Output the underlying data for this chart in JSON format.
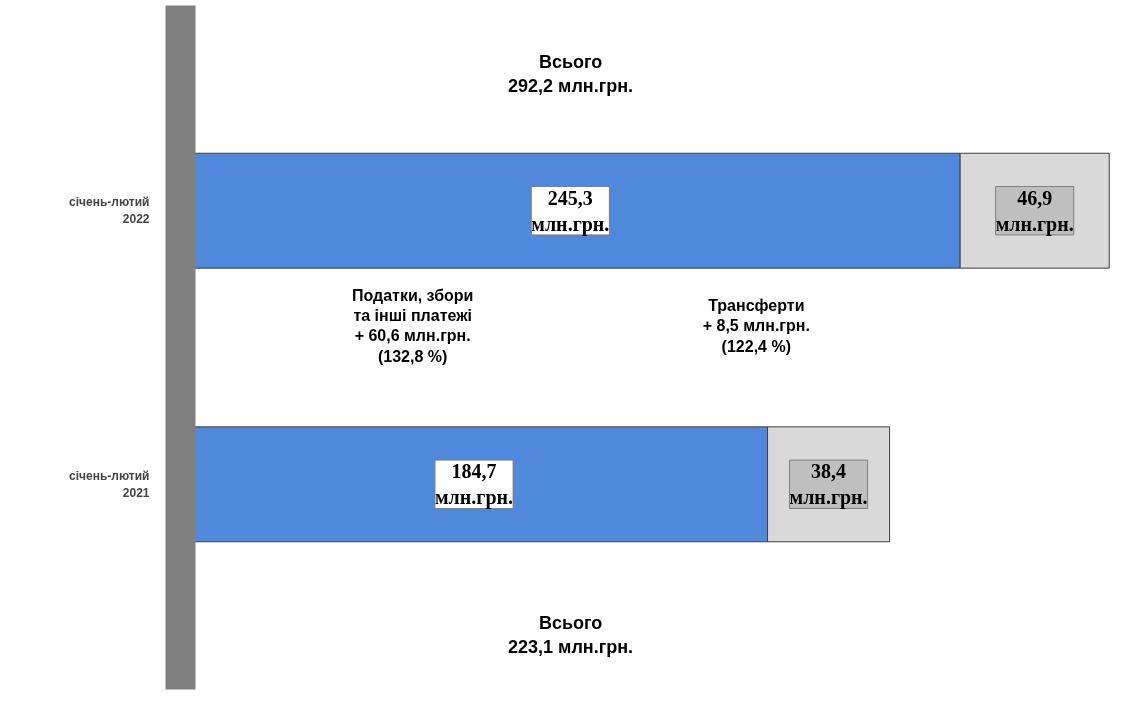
{
  "chart_data": {
    "type": "bar",
    "orientation": "horizontal",
    "stacked": true,
    "categories": [
      "січень-лютий\n2022",
      "січень-лютий\n2021"
    ],
    "series": [
      {
        "color": "#5089dc",
        "values": [
          245.3,
          184.7
        ],
        "value_labels": [
          "245,3\nмлн.грн.",
          "184,7\nмлн.грн."
        ]
      },
      {
        "color": "#d9d9d9",
        "values": [
          46.9,
          38.4
        ],
        "value_labels": [
          "46,9\nмлн.грн.",
          "38,4\nмлн.грн."
        ]
      }
    ],
    "annotations": [
      "Всього\n292,2 млн.грн.",
      "Всього\n223,1 млн.грн.",
      "Податки, збори\nта інші платежі\n+ 60,6 млн.грн.\n(132,8 %)",
      "Трансферти\n+ 8,5 млн.грн.\n(122,4 %)"
    ],
    "grid": false
  }
}
